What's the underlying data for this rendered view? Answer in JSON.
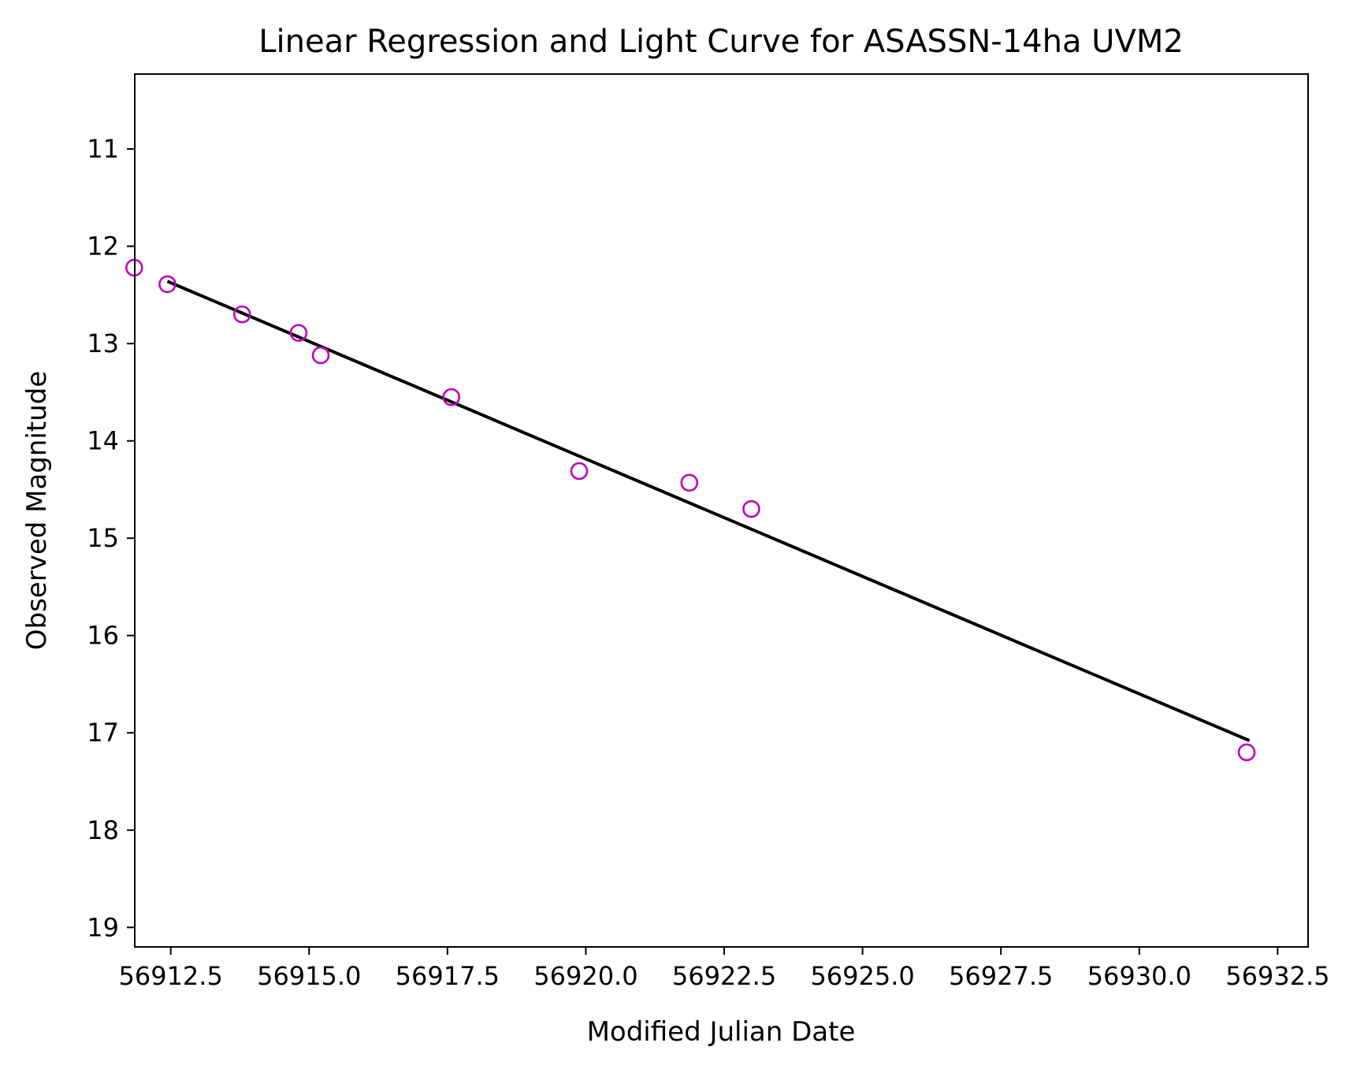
{
  "chart_data": {
    "type": "scatter",
    "title": "Linear Regression and Light Curve for ASASSN-14ha UVM2",
    "xlabel": "Modified Julian Date",
    "ylabel": "Observed Magnitude",
    "xlim": [
      56911.85,
      56933.05
    ],
    "ylim": [
      19.2,
      10.23
    ],
    "y_inverted": true,
    "grid": false,
    "x_ticks": [
      56912.5,
      56915.0,
      56917.5,
      56920.0,
      56922.5,
      56925.0,
      56927.5,
      56930.0,
      56932.5
    ],
    "x_tick_labels": [
      "56912.5",
      "56915.0",
      "56917.5",
      "56920.0",
      "56922.5",
      "56925.0",
      "56927.5",
      "56930.0",
      "56932.5"
    ],
    "y_ticks": [
      11,
      12,
      13,
      14,
      15,
      16,
      17,
      18,
      19
    ],
    "y_tick_labels": [
      "11",
      "12",
      "13",
      "14",
      "15",
      "16",
      "17",
      "18",
      "19"
    ],
    "series": [
      {
        "kind": "scatter",
        "marker": "open-circle",
        "color": "#bf00bf",
        "x": [
          56911.84,
          56912.44,
          56913.79,
          56914.81,
          56915.21,
          56917.57,
          56919.88,
          56921.87,
          56922.99,
          56931.94
        ],
        "y": [
          12.22,
          12.39,
          12.7,
          12.89,
          13.12,
          13.55,
          14.31,
          14.43,
          14.7,
          17.2
        ]
      },
      {
        "kind": "line",
        "color": "#000000",
        "x": [
          56912.44,
          56931.99
        ],
        "y": [
          12.36,
          17.08
        ]
      }
    ]
  }
}
